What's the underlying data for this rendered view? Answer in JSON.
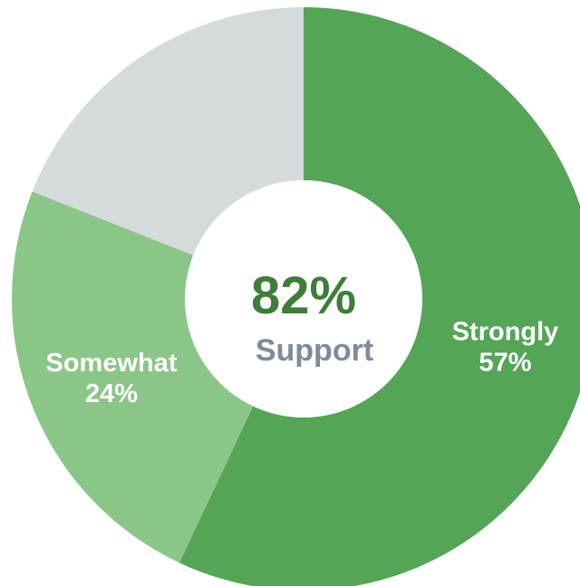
{
  "chart_data": {
    "type": "pie",
    "center_value": "82%",
    "center_caption": "Support",
    "colors": {
      "center_value": "#3e7d3a",
      "center_caption": "#7d8c97",
      "hole": "#ffffff"
    },
    "slices": [
      {
        "name": "Strongly",
        "value": 57,
        "value_label": "57%",
        "color": "#55a557"
      },
      {
        "name": "Somewhat",
        "value": 24,
        "value_label": "24%",
        "color": "#8ac688"
      },
      {
        "name": "",
        "value": 19,
        "value_label": "",
        "color": "#d5dadd"
      }
    ]
  }
}
